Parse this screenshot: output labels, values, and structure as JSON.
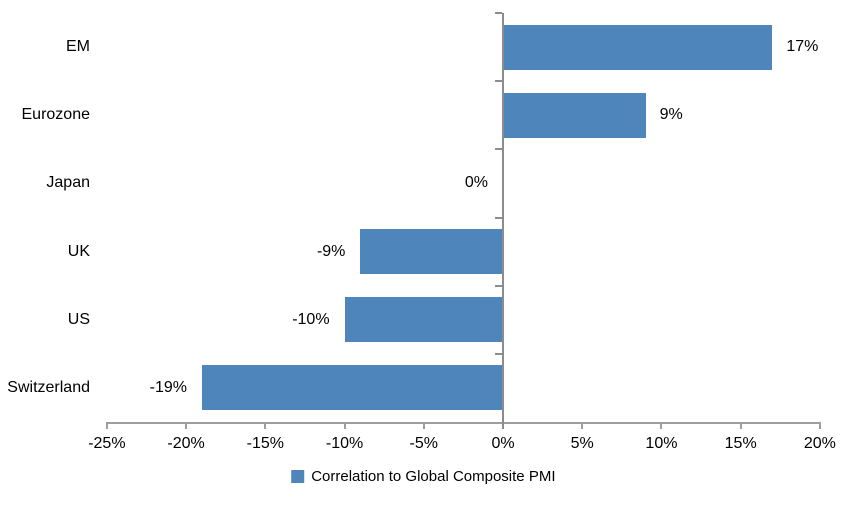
{
  "chart_data": {
    "type": "bar",
    "orientation": "horizontal",
    "title": "",
    "categories": [
      "EM",
      "Eurozone",
      "Japan",
      "UK",
      "US",
      "Switzerland"
    ],
    "values": [
      17,
      9,
      0,
      -9,
      -10,
      -19
    ],
    "value_labels": [
      "17%",
      "9%",
      "0%",
      "-9%",
      "-10%",
      "-19%"
    ],
    "series": [
      {
        "name": "Correlation to Global Composite PMI",
        "values": [
          17,
          9,
          0,
          -9,
          -10,
          -19
        ]
      }
    ],
    "xlabel": "",
    "ylabel": "",
    "xlim": [
      -25,
      20
    ],
    "x_ticks": [
      {
        "value": -25,
        "label": "-25%"
      },
      {
        "value": -20,
        "label": "-20%"
      },
      {
        "value": -15,
        "label": "-15%"
      },
      {
        "value": -10,
        "label": "-10%"
      },
      {
        "value": -5,
        "label": "-5%"
      },
      {
        "value": 0,
        "label": "0%"
      },
      {
        "value": 5,
        "label": "5%"
      },
      {
        "value": 10,
        "label": "10%"
      },
      {
        "value": 15,
        "label": "15%"
      },
      {
        "value": 20,
        "label": "20%"
      }
    ],
    "grid": false,
    "legend_position": "bottom",
    "legend_label": "Correlation to Global Composite PMI",
    "colors": {
      "bar": "#4E86BC",
      "axis": "#9E9E9E",
      "zero_line": "#8C8C8C",
      "text": "#000000",
      "background": "#FFFFFF"
    }
  }
}
